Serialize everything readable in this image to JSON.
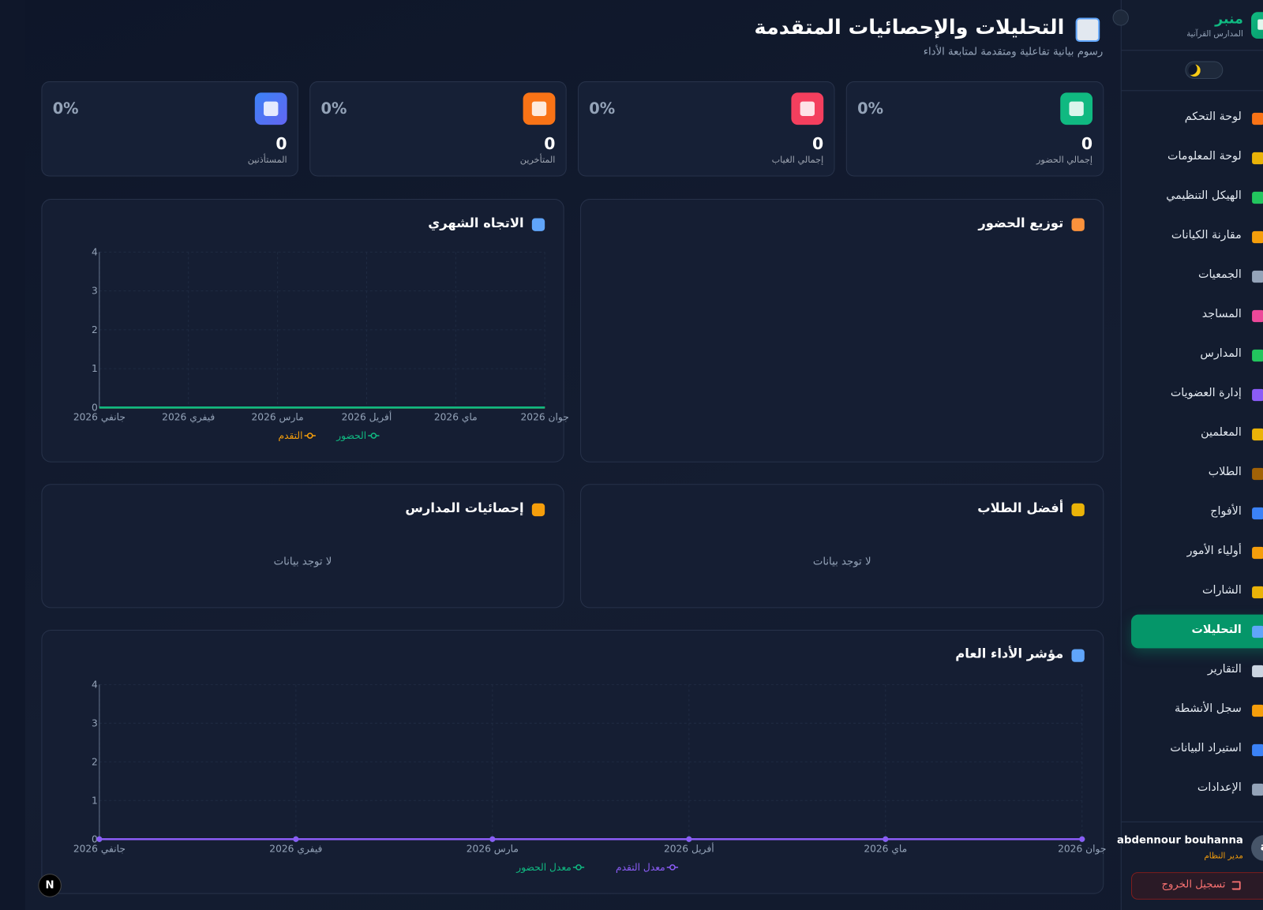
{
  "sidebar": {
    "brand": "منبر",
    "subtitle": "المدارس القرآنية",
    "nav": [
      "لوحة التحكم",
      "لوحة المعلومات",
      "الهيكل التنظيمي",
      "مقارنة الكيانات",
      "الجمعيات",
      "المساجد",
      "المدارس",
      "إدارة العضويات",
      "المعلمين",
      "الطلاب",
      "الأفواج",
      "أولياء الأمور",
      "الشارات",
      "التحليلات",
      "التقارير",
      "سجل الأنشطة",
      "استيراد البيانات",
      "الإعدادات"
    ],
    "user": {
      "name": "abdennour bouhanna",
      "role": "مدير النظام",
      "avatar": "a"
    },
    "logout": "تسجيل الخروج"
  },
  "header": {
    "title": "التحليلات والإحصائيات المتقدمة",
    "subtitle": "رسوم بيانية تفاعلية ومتقدمة لمتابعة الأداء"
  },
  "stats": [
    {
      "label": "إجمالي الحضور",
      "value": 0,
      "percent": "0%"
    },
    {
      "label": "إجمالي الغياب",
      "value": 0,
      "percent": "0%"
    },
    {
      "label": "المتأخرين",
      "value": 0,
      "percent": "0%"
    },
    {
      "label": "المستأذنين",
      "value": 0,
      "percent": "0%"
    }
  ],
  "panels": {
    "attendance_distribution": {
      "title": "توزيع الحضور"
    },
    "top_students": {
      "title": "أفضل الطلاب",
      "empty": "لا توجد بيانات"
    },
    "school_stats": {
      "title": "إحصائيات المدارس",
      "empty": "لا توجد بيانات"
    }
  },
  "chart_data": [
    {
      "type": "line",
      "title": "الاتجاه الشهري",
      "categories": [
        "جانفي 2026",
        "فيفري 2026",
        "مارس 2026",
        "أفريل 2026",
        "ماي 2026",
        "جوان 2026"
      ],
      "series": [
        {
          "name": "التقدم",
          "color": "#f59e0b",
          "values": [
            0,
            0,
            0,
            0,
            0,
            0
          ]
        },
        {
          "name": "الحضور",
          "color": "#10b981",
          "values": [
            0,
            0,
            0,
            0,
            0,
            0
          ]
        }
      ],
      "ylim": [
        0,
        4
      ],
      "yticks": [
        0,
        1,
        2,
        3,
        4
      ],
      "grid": true,
      "markers": false
    },
    {
      "type": "line",
      "title": "مؤشر الأداء العام",
      "categories": [
        "جانفي 2026",
        "فيفري 2026",
        "مارس 2026",
        "أفريل 2026",
        "ماي 2026",
        "جوان 2026"
      ],
      "series": [
        {
          "name": "معدل الحضور",
          "color": "#10b981",
          "values": [
            0,
            0,
            0,
            0,
            0,
            0
          ]
        },
        {
          "name": "معدل التقدم",
          "color": "#8b5cf6",
          "values": [
            0,
            0,
            0,
            0,
            0,
            0
          ]
        }
      ],
      "ylim": [
        0,
        4
      ],
      "yticks": [
        0,
        1,
        2,
        3,
        4
      ],
      "grid": true,
      "markers": true
    }
  ],
  "dev_badge": "N"
}
